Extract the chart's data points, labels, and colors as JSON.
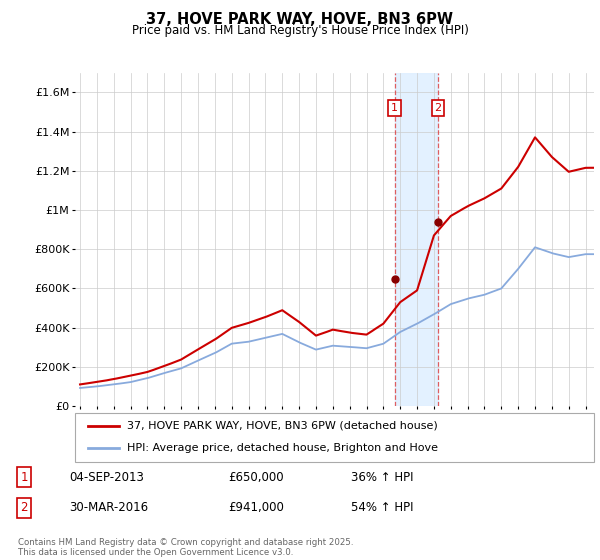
{
  "title": "37, HOVE PARK WAY, HOVE, BN3 6PW",
  "subtitle": "Price paid vs. HM Land Registry's House Price Index (HPI)",
  "legend_entry1": "37, HOVE PARK WAY, HOVE, BN3 6PW (detached house)",
  "legend_entry2": "HPI: Average price, detached house, Brighton and Hove",
  "transaction1_label": "1",
  "transaction1_date": "04-SEP-2013",
  "transaction1_price": "£650,000",
  "transaction1_hpi": "36% ↑ HPI",
  "transaction2_label": "2",
  "transaction2_date": "30-MAR-2016",
  "transaction2_price": "£941,000",
  "transaction2_hpi": "54% ↑ HPI",
  "footnote": "Contains HM Land Registry data © Crown copyright and database right 2025.\nThis data is licensed under the Open Government Licence v3.0.",
  "line1_color": "#cc0000",
  "line2_color": "#88aadd",
  "shade_color": "#ddeeff",
  "marker_color": "#880000",
  "marker1_x": 2013.67,
  "marker1_y": 650000,
  "marker2_x": 2016.25,
  "marker2_y": 941000,
  "shade_x1": 2013.67,
  "shade_x2": 2016.25,
  "ylim": [
    0,
    1700000
  ],
  "xlim": [
    1994.7,
    2025.5
  ],
  "yticks": [
    0,
    200000,
    400000,
    600000,
    800000,
    1000000,
    1200000,
    1400000,
    1600000
  ],
  "ytick_labels": [
    "£0",
    "£200K",
    "£400K",
    "£600K",
    "£800K",
    "£1M",
    "£1.2M",
    "£1.4M",
    "£1.6M"
  ],
  "bg_color": "#f8f8f8"
}
